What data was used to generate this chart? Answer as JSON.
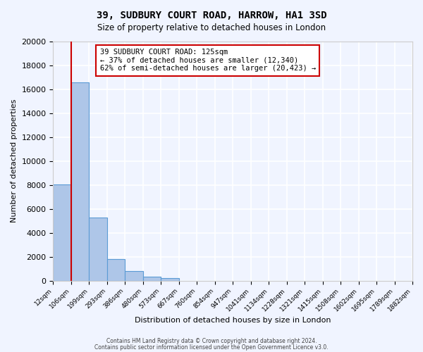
{
  "title": "39, SUDBURY COURT ROAD, HARROW, HA1 3SD",
  "subtitle": "Size of property relative to detached houses in London",
  "xlabel": "Distribution of detached houses by size in London",
  "ylabel": "Number of detached properties",
  "bin_labels": [
    "12sqm",
    "106sqm",
    "199sqm",
    "293sqm",
    "386sqm",
    "480sqm",
    "573sqm",
    "667sqm",
    "760sqm",
    "854sqm",
    "947sqm",
    "1041sqm",
    "1134sqm",
    "1228sqm",
    "1321sqm",
    "1415sqm",
    "1508sqm",
    "1602sqm",
    "1695sqm",
    "1789sqm",
    "1882sqm"
  ],
  "bar_values": [
    8050,
    16600,
    5300,
    1800,
    780,
    300,
    220,
    0,
    0,
    0,
    0,
    0,
    0,
    0,
    0,
    0,
    0,
    0,
    0,
    0
  ],
  "bar_color": "#aec6e8",
  "bar_edge_color": "#5b9bd5",
  "vline_x": 1,
  "vline_color": "#cc0000",
  "ylim": [
    0,
    20000
  ],
  "yticks": [
    0,
    2000,
    4000,
    6000,
    8000,
    10000,
    12000,
    14000,
    16000,
    18000,
    20000
  ],
  "annotation_title": "39 SUDBURY COURT ROAD: 125sqm",
  "annotation_line1": "← 37% of detached houses are smaller (12,340)",
  "annotation_line2": "62% of semi-detached houses are larger (20,423) →",
  "annotation_box_color": "#ffffff",
  "annotation_border_color": "#cc0000",
  "footer_line1": "Contains HM Land Registry data © Crown copyright and database right 2024.",
  "footer_line2": "Contains public sector information licensed under the Open Government Licence v3.0.",
  "background_color": "#f0f4ff",
  "grid_color": "#ffffff"
}
